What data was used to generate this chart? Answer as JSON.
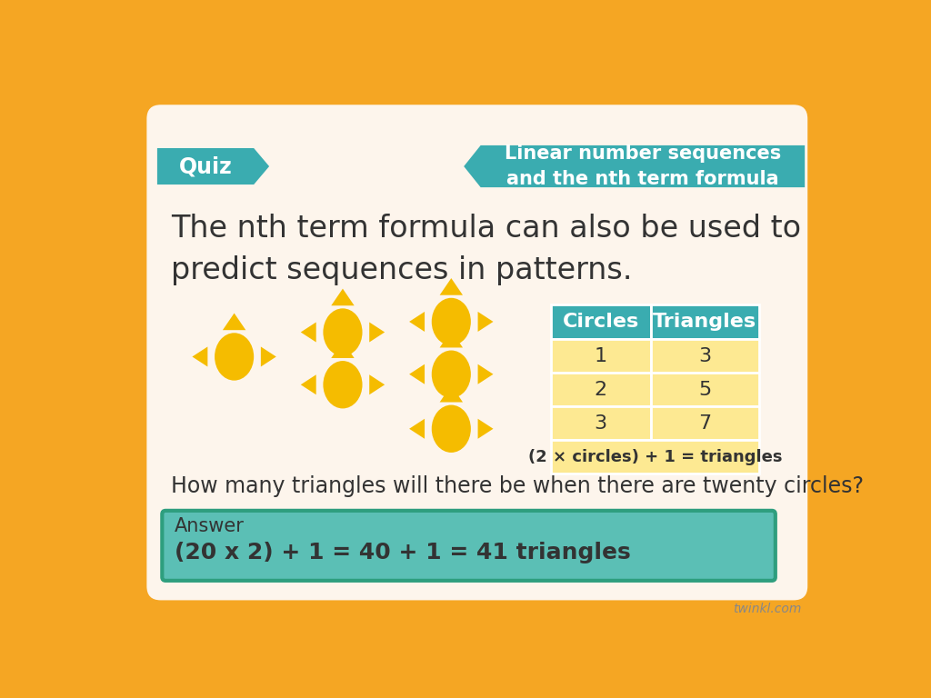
{
  "bg_outer": "#F5A623",
  "bg_inner": "#FDF5EC",
  "teal": "#3AACB0",
  "gold_shape": "#F5BC00",
  "text_dark": "#333333",
  "text_white": "#FFFFFF",
  "title_main": "The nth term formula can also be used to\npredict sequences in patterns.",
  "quiz_label": "Quiz",
  "header_label": "Linear number sequences\nand the nth term formula",
  "table_headers": [
    "Circles",
    "Triangles"
  ],
  "table_data": [
    [
      1,
      3
    ],
    [
      2,
      5
    ],
    [
      3,
      7
    ]
  ],
  "table_footer": "(2 × circles) + 1 = triangles",
  "question": "How many triangles will there be when there are twenty circles?",
  "answer_label": "Answer",
  "answer_bold": "(20 x 2) + 1 = 40 + 1 = 41 triangles",
  "answer_bg": "#5BBFB5",
  "light_yellow": "#FDE992",
  "twinkl": "twinkl.com"
}
